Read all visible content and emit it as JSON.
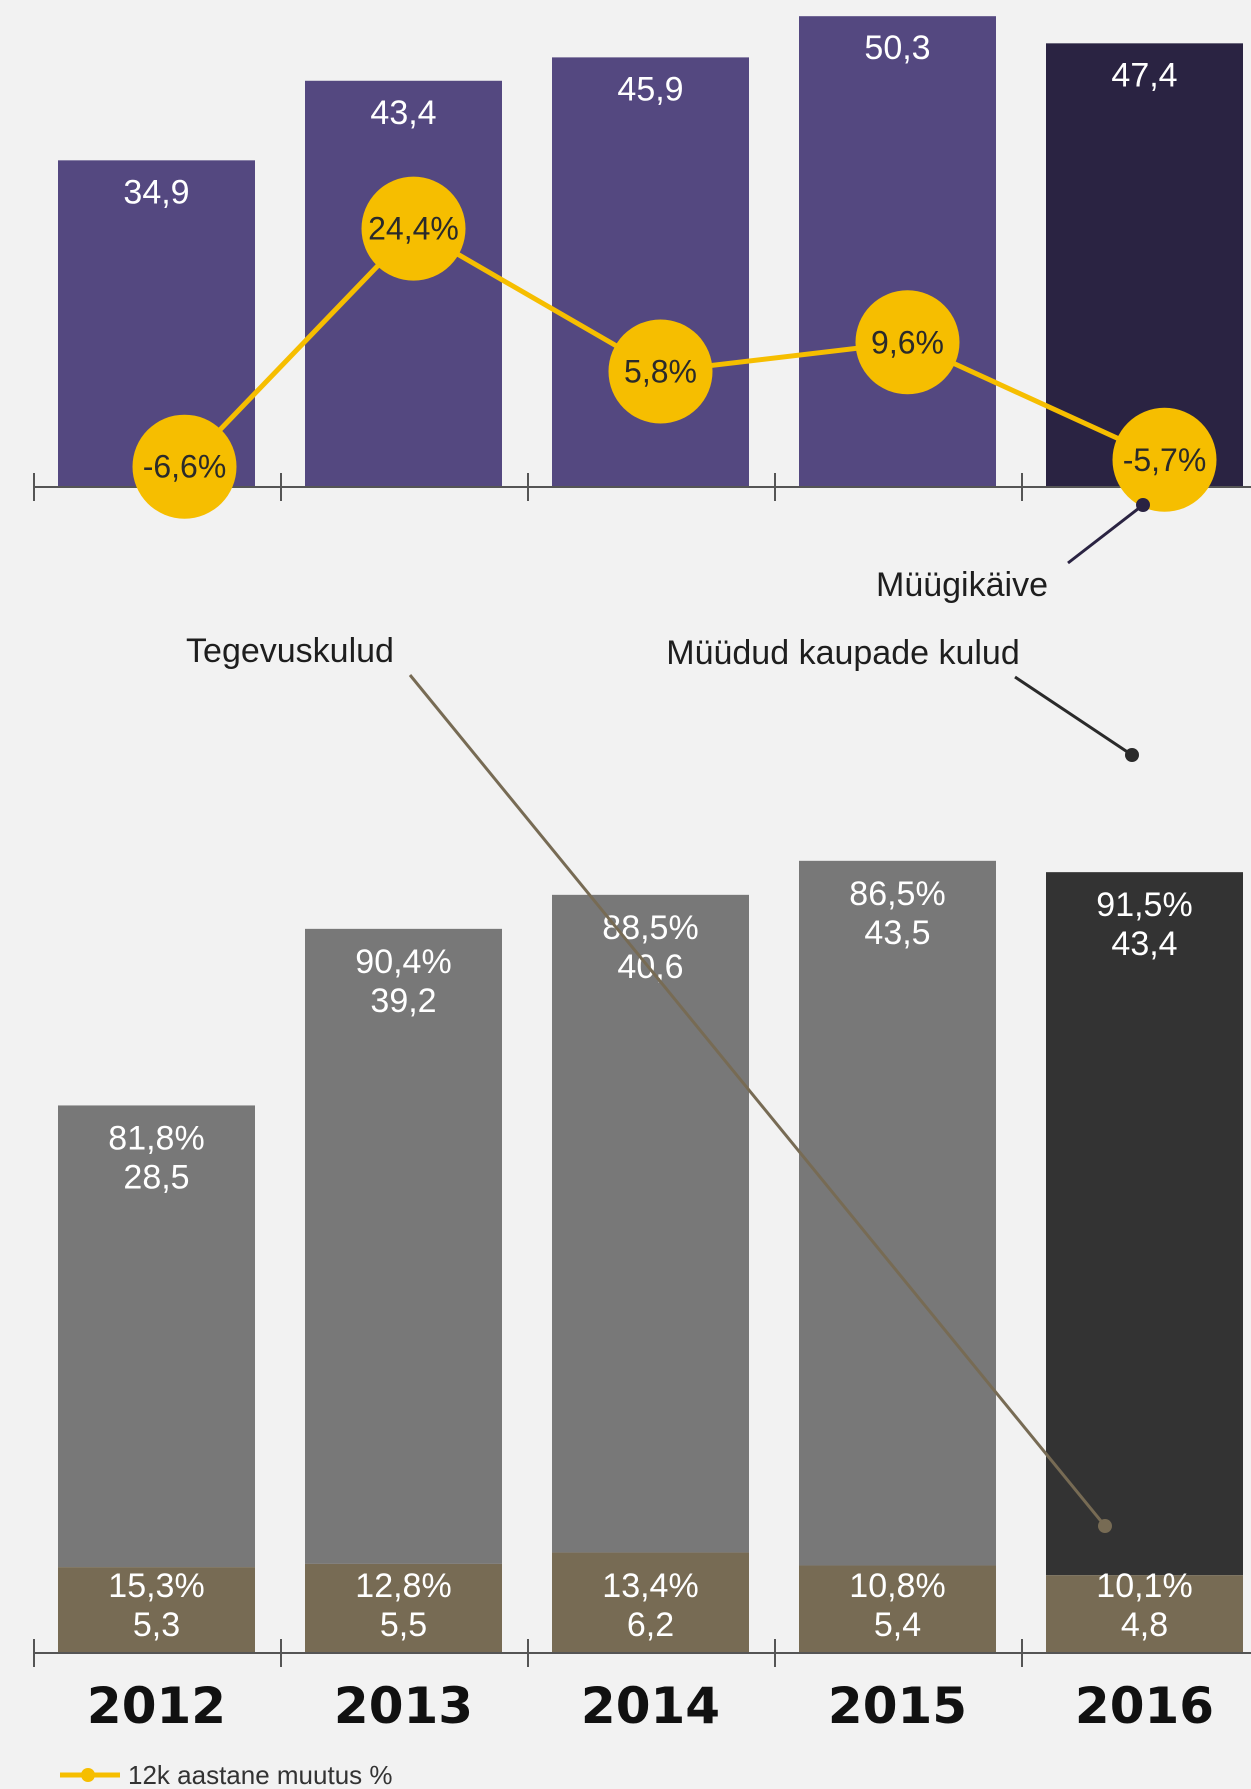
{
  "chart_data": [
    {
      "type": "bar",
      "categories": [
        "2012",
        "2013",
        "2014",
        "2015",
        "2016"
      ],
      "series": [
        {
          "name": "Müügikäive",
          "values": [
            34.9,
            43.4,
            45.9,
            50.3,
            47.4
          ],
          "labels": [
            "34,9",
            "43,4",
            "45,9",
            "50,3",
            "47,4"
          ]
        },
        {
          "name": "12k aastane muutus %",
          "type": "line",
          "values": [
            -6.6,
            24.4,
            5.8,
            9.6,
            -5.7
          ],
          "labels": [
            "-6,6%",
            "24,4%",
            "5,8%",
            "9,6%",
            "-5,7%"
          ]
        }
      ],
      "annotation": "Müügikäive",
      "colors": {
        "bar": "#544880",
        "bar_highlight": "#2a2342",
        "line": "#f6be00"
      }
    },
    {
      "type": "bar",
      "stacked": true,
      "categories": [
        "2012",
        "2013",
        "2014",
        "2015",
        "2016"
      ],
      "series": [
        {
          "name": "Müüdud kaupade kulud",
          "values": [
            28.5,
            39.2,
            40.6,
            43.5,
            43.4
          ],
          "labels": [
            "28,5",
            "39,2",
            "40,6",
            "43,5",
            "43,4"
          ],
          "pct_labels": [
            "81,8%",
            "90,4%",
            "88,5%",
            "86,5%",
            "91,5%"
          ]
        },
        {
          "name": "Tegevuskulud",
          "values": [
            5.3,
            5.5,
            6.2,
            5.4,
            4.8
          ],
          "labels": [
            "5,3",
            "5,5",
            "6,2",
            "5,4",
            "4,8"
          ],
          "pct_labels": [
            "15,3%",
            "12,8%",
            "13,4%",
            "10,8%",
            "10,1%"
          ]
        }
      ],
      "annotations": {
        "cogs": "Müüdud kaupade kulud",
        "opex": "Tegevuskulud"
      },
      "colors": {
        "cogs": "#787878",
        "cogs_highlight": "#333333",
        "opex": "#776b54"
      }
    }
  ],
  "legend": {
    "line_label": "12k aastane muutus %",
    "line_color": "#f6be00"
  }
}
